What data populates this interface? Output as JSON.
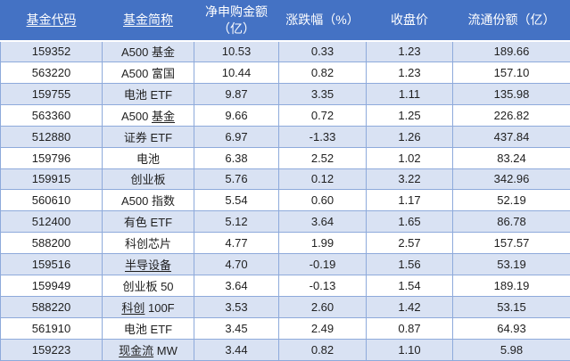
{
  "table": {
    "headers": [
      {
        "label": "基金代码",
        "underline": true
      },
      {
        "label": "基金简称",
        "underline": true
      },
      {
        "label": "净申购金额（亿）",
        "underline": false
      },
      {
        "label": "涨跌幅（%）",
        "underline": false
      },
      {
        "label": "收盘价",
        "underline": false
      },
      {
        "label": "流通份额（亿）",
        "underline": false
      }
    ],
    "rows": [
      {
        "code": "159352",
        "name": "A500 基金",
        "name_underline": "",
        "net": "10.53",
        "chg": "0.33",
        "close": "1.23",
        "shares": "189.66"
      },
      {
        "code": "563220",
        "name": "A500 富国",
        "name_underline": "",
        "net": "10.44",
        "chg": "0.82",
        "close": "1.23",
        "shares": "157.10"
      },
      {
        "code": "159755",
        "name": "电池 ETF",
        "name_underline": "",
        "net": "9.87",
        "chg": "3.35",
        "close": "1.11",
        "shares": "135.98"
      },
      {
        "code": "563360",
        "name": "A500 基金",
        "name_underline": "基金",
        "net": "9.66",
        "chg": "0.72",
        "close": "1.25",
        "shares": "226.82"
      },
      {
        "code": "512880",
        "name": "证券 ETF",
        "name_underline": "",
        "net": "6.97",
        "chg": "-1.33",
        "close": "1.26",
        "shares": "437.84"
      },
      {
        "code": "159796",
        "name": "电池",
        "name_underline": "",
        "net": "6.38",
        "chg": "2.52",
        "close": "1.02",
        "shares": "83.24"
      },
      {
        "code": "159915",
        "name": "创业板",
        "name_underline": "",
        "net": "5.76",
        "chg": "0.12",
        "close": "3.22",
        "shares": "342.96"
      },
      {
        "code": "560610",
        "name": "A500 指数",
        "name_underline": "",
        "net": "5.54",
        "chg": "0.60",
        "close": "1.17",
        "shares": "52.19"
      },
      {
        "code": "512400",
        "name": "有色 ETF",
        "name_underline": "",
        "net": "5.12",
        "chg": "3.64",
        "close": "1.65",
        "shares": "86.78"
      },
      {
        "code": "588200",
        "name": "科创芯片",
        "name_underline": "",
        "net": "4.77",
        "chg": "1.99",
        "close": "2.57",
        "shares": "157.57"
      },
      {
        "code": "159516",
        "name": "半导设备",
        "name_underline": "半导设备",
        "net": "4.70",
        "chg": "-0.19",
        "close": "1.56",
        "shares": "53.19"
      },
      {
        "code": "159949",
        "name": "创业板 50",
        "name_underline": "",
        "net": "3.64",
        "chg": "-0.13",
        "close": "1.54",
        "shares": "189.19"
      },
      {
        "code": "588220",
        "name": "科创 100F",
        "name_underline": "科创",
        "net": "3.53",
        "chg": "2.60",
        "close": "1.42",
        "shares": "53.15"
      },
      {
        "code": "561910",
        "name": "电池 ETF",
        "name_underline": "",
        "net": "3.45",
        "chg": "2.49",
        "close": "0.87",
        "shares": "64.93"
      },
      {
        "code": "159223",
        "name": "现金流 MW",
        "name_underline": "现金流",
        "net": "3.44",
        "chg": "0.82",
        "close": "1.10",
        "shares": "5.98"
      }
    ]
  },
  "colors": {
    "header_bg": "#4472C4",
    "header_text": "#FFFFFF",
    "row_alt_bg": "#D9E2F3",
    "border": "#8EAADB",
    "text": "#1F1F1F"
  }
}
